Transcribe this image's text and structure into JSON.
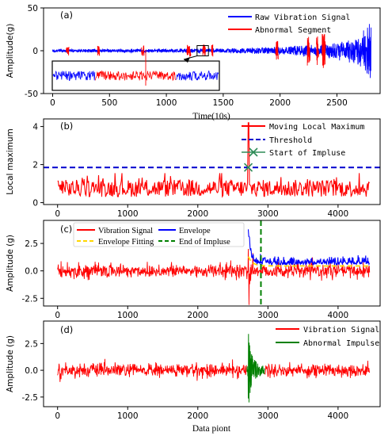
{
  "chart_data": [
    {
      "panel": "(a)",
      "type": "line",
      "xlabel": "Time(10s)",
      "ylabel": "Amplitude(g)",
      "xlim": [
        -80,
        2880
      ],
      "ylim": [
        -50,
        50
      ],
      "xticks": [
        0,
        500,
        1000,
        1500,
        2000,
        2500
      ],
      "yticks": [
        -50,
        0,
        50
      ],
      "legend": {
        "position": "top-right",
        "entries": [
          "Raw Vibration Signal",
          "Abnormal Segment"
        ]
      },
      "series": [
        {
          "name": "Raw Vibration Signal",
          "color": "#0000ff",
          "envelope_x": [
            0,
            1000,
            1500,
            1800,
            2000,
            2200,
            2400,
            2550,
            2650,
            2720,
            2760,
            2790,
            2800
          ],
          "envelope_amp": [
            2,
            2.5,
            3,
            4,
            5,
            7,
            9,
            12,
            16,
            22,
            30,
            42,
            45
          ]
        },
        {
          "name": "Abnormal Segment",
          "color": "#ff0000",
          "segments_x": [
            [
              120,
              145
            ],
            [
              395,
              415
            ],
            [
              780,
              805
            ],
            [
              1180,
              1215
            ],
            [
              1320,
              1345
            ],
            [
              1395,
              1410
            ],
            [
              1960,
              1985
            ],
            [
              2240,
              2265
            ],
            [
              2320,
              2340
            ],
            [
              2370,
              2400
            ]
          ]
        }
      ],
      "inset": {
        "zoom_box_x": [
          1270,
          1370
        ],
        "description_colors": [
          "#0000ff",
          "#ff0000"
        ]
      }
    },
    {
      "panel": "(b)",
      "type": "line",
      "xlabel": "",
      "ylabel": "Local maximum",
      "xlim": [
        -200,
        4600
      ],
      "ylim": [
        -0.1,
        4.4
      ],
      "xticks": [
        0,
        1000,
        2000,
        3000,
        4000
      ],
      "yticks": [
        0,
        2,
        4
      ],
      "threshold": 1.85,
      "impulse_start": {
        "x": 2720,
        "y": 1.85
      },
      "peak": {
        "x": 2720,
        "y": 4.2
      },
      "legend": {
        "position": "top-right",
        "entries": [
          "Moving Local Maximum",
          "Threshold",
          "Start of Impluse"
        ]
      },
      "series": [
        {
          "name": "Moving Local Maximum",
          "color": "#ff0000",
          "noise_range": [
            0.2,
            1.5
          ],
          "x_end": 4450
        },
        {
          "name": "Threshold",
          "color": "#0000cd",
          "value": 1.85
        }
      ]
    },
    {
      "panel": "(c)",
      "type": "line",
      "xlabel": "",
      "ylabel": "Amplitude (g)",
      "xlim": [
        -200,
        4600
      ],
      "ylim": [
        -3.2,
        4.6
      ],
      "xticks": [
        0,
        1000,
        2000,
        3000,
        4000
      ],
      "yticks": [
        -2.5,
        0.0,
        2.5
      ],
      "impulse_end_x": 2900,
      "legend": {
        "position": "top-left",
        "entries": [
          "Vibration Signal",
          "Envelope",
          "Envelope Fitting",
          "End of Impluse"
        ]
      },
      "series": [
        {
          "name": "Vibration Signal",
          "color": "#ff0000",
          "amp": 0.8,
          "spike_x": 2720,
          "spike_range": [
            -2.9,
            2.0
          ]
        },
        {
          "name": "Envelope",
          "color": "#0000ff",
          "x_start": 2720,
          "peak": 3.7,
          "base": 0.55
        },
        {
          "name": "Envelope Fitting",
          "color": "#ffd700",
          "x_start": 2720,
          "peak": 1.3,
          "base": 0.45
        },
        {
          "name": "End of Impluse",
          "color": "#008000",
          "x": 2900
        }
      ]
    },
    {
      "panel": "(d)",
      "type": "line",
      "xlabel": "Data piont",
      "ylabel": "Amplitude (g)",
      "xlim": [
        -200,
        4600
      ],
      "ylim": [
        -3.4,
        4.6
      ],
      "xticks": [
        0,
        1000,
        2000,
        3000,
        4000
      ],
      "yticks": [
        -2.5,
        0.0,
        2.5
      ],
      "legend": {
        "position": "top-right",
        "entries": [
          "Vibration Signal",
          "Abnormal Impulse"
        ]
      },
      "series": [
        {
          "name": "Vibration Signal",
          "color": "#ff0000",
          "amp": 0.8
        },
        {
          "name": "Abnormal Impulse",
          "color": "#008000",
          "x_range": [
            2700,
            2950
          ],
          "peak": 3.4,
          "trough": -3.0
        }
      ]
    }
  ]
}
